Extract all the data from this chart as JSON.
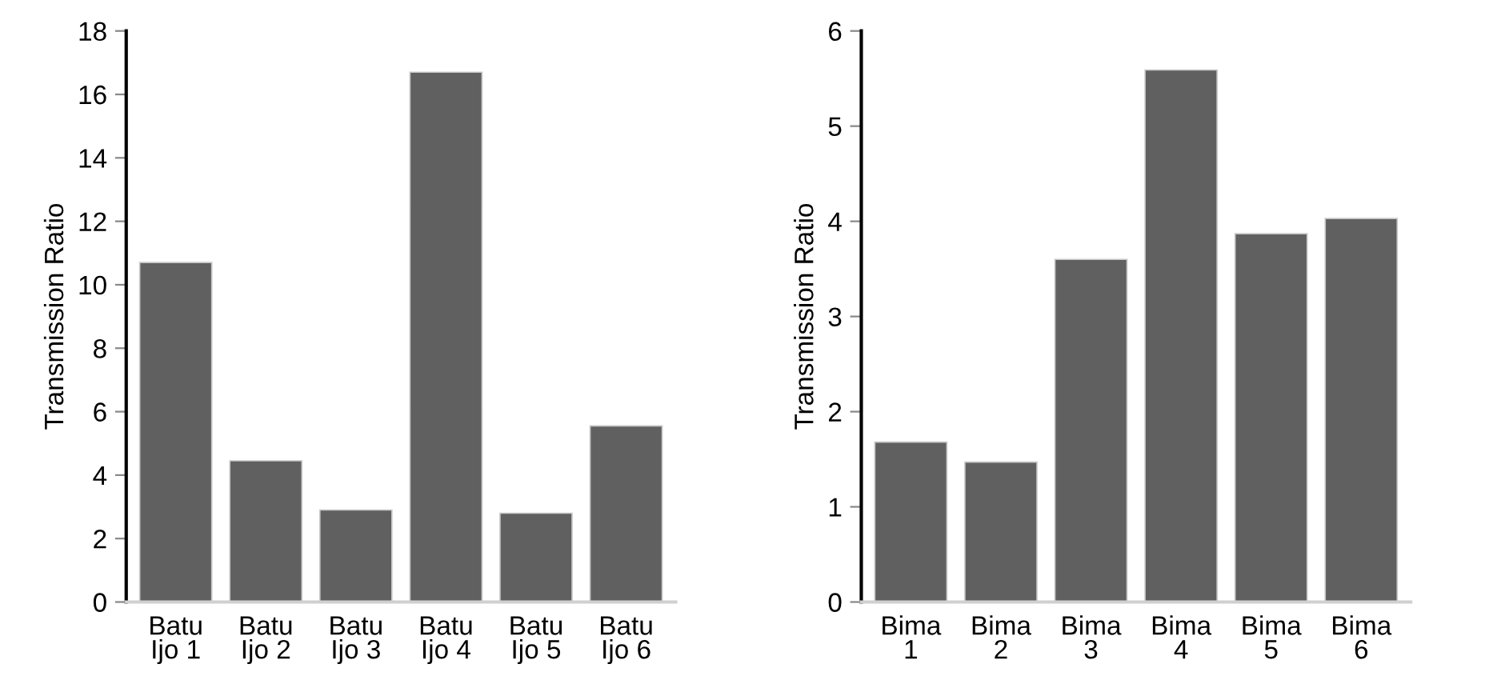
{
  "chart_data": [
    {
      "type": "bar",
      "ylabel": "Transmission Ratio",
      "categories": [
        "Batu\nIjo 1",
        "Batu\nIjo 2",
        "Batu\nIjo 3",
        "Batu\nIjo 4",
        "Batu\nIjo 5",
        "Batu\nIjo 6"
      ],
      "values": [
        10.7,
        4.45,
        2.9,
        16.7,
        2.8,
        5.55
      ],
      "color": "#606060",
      "ylim": [
        0,
        18
      ],
      "yticks": [
        0,
        2,
        4,
        6,
        8,
        10,
        12,
        14,
        16,
        18
      ],
      "grid": false
    },
    {
      "type": "bar",
      "ylabel": "Transmission Ratio",
      "categories": [
        "Bima\n1",
        "Bima\n2",
        "Bima\n3",
        "Bima\n4",
        "Bima\n5",
        "Bima\n6"
      ],
      "values": [
        1.68,
        1.47,
        3.6,
        5.59,
        3.87,
        4.03
      ],
      "color": "#606060",
      "ylim": [
        0,
        6
      ],
      "yticks": [
        0,
        1,
        2,
        3,
        4,
        5,
        6
      ],
      "grid": false
    }
  ]
}
